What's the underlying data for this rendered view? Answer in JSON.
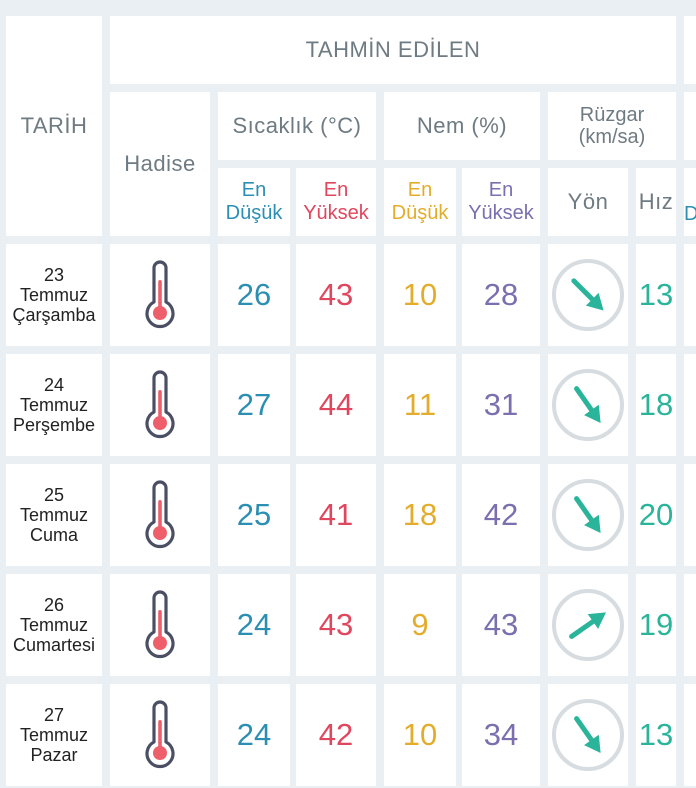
{
  "header": {
    "date_col": "TARİH",
    "forecast": "TAHMİN EDİLEN",
    "event": "Hadise",
    "temperature": "Sıcaklık (°C)",
    "humidity": "Nem (%)",
    "wind_line1": "Rüzgar",
    "wind_line2": "(km/sa)",
    "sub_en": "En",
    "sub_low": "Düşük",
    "sub_high": "Yüksek",
    "direction": "Yön",
    "speed": "Hız",
    "cut_d": "D"
  },
  "colors": {
    "low_temp": "#2b8fb3",
    "high_temp": "#e0475e",
    "low_humidity": "#e3ad2b",
    "high_humidity": "#7b6fb0",
    "wind": "#2ab59a"
  },
  "rows": [
    {
      "day": "23",
      "month": "Temmuz",
      "weekday": "Çarşamba",
      "event_icon": "thermometer-icon",
      "temp_low": "26",
      "temp_high": "43",
      "hum_low": "10",
      "hum_high": "28",
      "wind_dir_deg": 135,
      "wind_speed": "13"
    },
    {
      "day": "24",
      "month": "Temmuz",
      "weekday": "Perşembe",
      "event_icon": "thermometer-icon",
      "temp_low": "27",
      "temp_high": "44",
      "hum_low": "11",
      "hum_high": "31",
      "wind_dir_deg": 145,
      "wind_speed": "18"
    },
    {
      "day": "25",
      "month": "Temmuz",
      "weekday": "Cuma",
      "event_icon": "thermometer-icon",
      "temp_low": "25",
      "temp_high": "41",
      "hum_low": "18",
      "hum_high": "42",
      "wind_dir_deg": 145,
      "wind_speed": "20"
    },
    {
      "day": "26",
      "month": "Temmuz",
      "weekday": "Cumartesi",
      "event_icon": "thermometer-icon",
      "temp_low": "24",
      "temp_high": "43",
      "hum_low": "9",
      "hum_high": "43",
      "wind_dir_deg": 55,
      "wind_speed": "19"
    },
    {
      "day": "27",
      "month": "Temmuz",
      "weekday": "Pazar",
      "event_icon": "thermometer-icon",
      "temp_low": "24",
      "temp_high": "42",
      "hum_low": "10",
      "hum_high": "34",
      "wind_dir_deg": 145,
      "wind_speed": "13"
    }
  ]
}
